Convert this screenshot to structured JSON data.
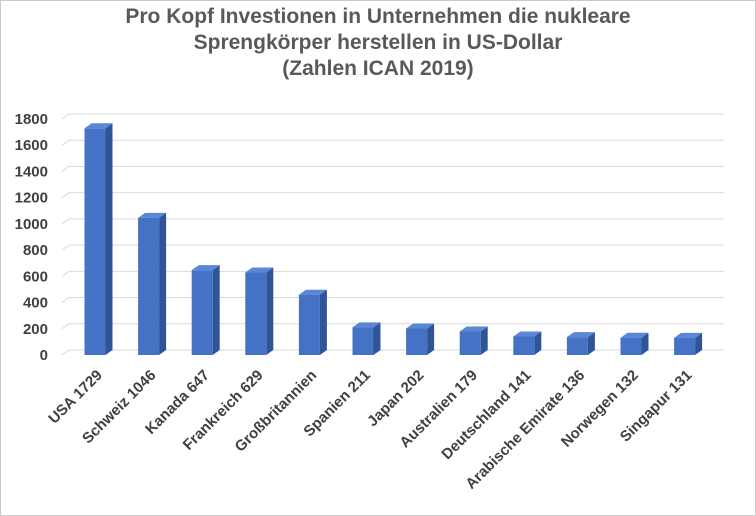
{
  "chart_data": {
    "type": "bar",
    "title_lines": [
      "Pro Kopf Investionen in Unternehmen die nukleare",
      "Sprengkörper herstellen in US-Dollar",
      "(Zahlen ICAN 2019)"
    ],
    "categories": [
      "USA  1729",
      "Schweiz  1046",
      "Kanada  647",
      "Frankreich  629",
      "Großbritannien",
      "Spanien  211",
      "Japan  202",
      "Australien  179",
      "Deutschland  141",
      "Arabische Emirate  136",
      "Norwegen  132",
      "Singapur  131"
    ],
    "values": [
      1729,
      1046,
      647,
      629,
      460,
      211,
      202,
      179,
      141,
      136,
      132,
      131
    ],
    "ylim": [
      0,
      1800
    ],
    "yticks": [
      0,
      200,
      400,
      600,
      800,
      1000,
      1200,
      1400,
      1600,
      1800
    ],
    "grid": true,
    "bar_style": "3d",
    "colors": {
      "front": "#4472c4",
      "side": "#2f5597",
      "top": "#5b86d6",
      "grid": "#d9d9d9",
      "text": "#404040",
      "title": "#595959"
    }
  }
}
